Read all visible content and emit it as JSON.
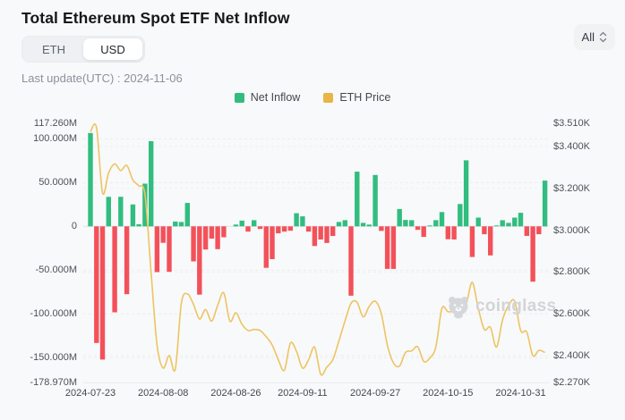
{
  "header": {
    "title": "Total Ethereum Spot ETF Net Inflow",
    "toggle": {
      "options": [
        "ETH",
        "USD"
      ],
      "selected": "USD"
    },
    "range_dropdown": {
      "value": "All"
    },
    "last_update": "Last update(UTC) : 2024-11-06"
  },
  "legend": [
    {
      "label": "Net Inflow",
      "color": "#31bd7f"
    },
    {
      "label": "ETH Price",
      "color": "#e9b544"
    }
  ],
  "watermark": {
    "text": "coinglass"
  },
  "chart_data": {
    "type": "bar+line",
    "title": "Total Ethereum Spot ETF Net Inflow",
    "x": [
      "2024-07-23",
      "2024-07-24",
      "2024-07-25",
      "2024-07-26",
      "2024-07-29",
      "2024-07-30",
      "2024-07-31",
      "2024-08-01",
      "2024-08-02",
      "2024-08-05",
      "2024-08-06",
      "2024-08-07",
      "2024-08-08",
      "2024-08-09",
      "2024-08-12",
      "2024-08-13",
      "2024-08-14",
      "2024-08-15",
      "2024-08-16",
      "2024-08-19",
      "2024-08-20",
      "2024-08-21",
      "2024-08-22",
      "2024-08-23",
      "2024-08-26",
      "2024-08-27",
      "2024-08-28",
      "2024-08-29",
      "2024-08-30",
      "2024-09-03",
      "2024-09-04",
      "2024-09-05",
      "2024-09-06",
      "2024-09-09",
      "2024-09-10",
      "2024-09-11",
      "2024-09-12",
      "2024-09-13",
      "2024-09-16",
      "2024-09-17",
      "2024-09-18",
      "2024-09-19",
      "2024-09-20",
      "2024-09-23",
      "2024-09-24",
      "2024-09-25",
      "2024-09-26",
      "2024-09-27",
      "2024-09-30",
      "2024-10-01",
      "2024-10-02",
      "2024-10-03",
      "2024-10-04",
      "2024-10-07",
      "2024-10-08",
      "2024-10-09",
      "2024-10-10",
      "2024-10-11",
      "2024-10-14",
      "2024-10-15",
      "2024-10-16",
      "2024-10-17",
      "2024-10-18",
      "2024-10-21",
      "2024-10-22",
      "2024-10-23",
      "2024-10-24",
      "2024-10-25",
      "2024-10-28",
      "2024-10-29",
      "2024-10-30",
      "2024-10-31",
      "2024-11-01",
      "2024-11-04",
      "2024-11-05",
      "2024-11-06"
    ],
    "series": [
      {
        "name": "Net Inflow",
        "type": "bar",
        "unit": "USD millions",
        "values": [
          106.6,
          -133.3,
          -152.3,
          33.7,
          -98.3,
          33.8,
          -77.5,
          25.0,
          2.5,
          48.8,
          97.3,
          -52.3,
          -18.8,
          -52.0,
          5.5,
          5.0,
          26.8,
          -40.0,
          -78.0,
          -26.5,
          -14.0,
          -26.0,
          -12.5,
          0.0,
          2.0,
          6.5,
          -6.0,
          7.0,
          -3.0,
          -47.4,
          -37.5,
          -8.0,
          -6.0,
          -5.0,
          15.0,
          11.4,
          -6.0,
          -22.5,
          -15.0,
          -19.0,
          -11.0,
          5.0,
          7.0,
          -79.3,
          62.5,
          4.0,
          2.0,
          58.7,
          -5.2,
          -48.6,
          -48.6,
          19.8,
          7.4,
          7.0,
          -4.0,
          -12.1,
          1.0,
          7.0,
          16.3,
          -14.7,
          -15.0,
          25.5,
          75.5,
          -35.0,
          10.0,
          -9.0,
          -33.2,
          1.0,
          7.0,
          4.0,
          10.0,
          15.5,
          -10.9,
          -63.2,
          -9.0,
          52.3
        ]
      },
      {
        "name": "ETH Price",
        "type": "line",
        "unit": "USD",
        "values": [
          3470,
          3490,
          3179,
          3274,
          3317,
          3285,
          3310,
          3240,
          3212,
          3170,
          2800,
          2450,
          2340,
          2400,
          2335,
          2650,
          2695,
          2645,
          2575,
          2620,
          2565,
          2640,
          2700,
          2565,
          2605,
          2550,
          2520,
          2525,
          2520,
          2490,
          2450,
          2380,
          2330,
          2460,
          2420,
          2340,
          2380,
          2440,
          2310,
          2345,
          2380,
          2470,
          2565,
          2650,
          2655,
          2585,
          2635,
          2660,
          2600,
          2450,
          2365,
          2350,
          2415,
          2422,
          2442,
          2372,
          2388,
          2442,
          2625,
          2610,
          2612,
          2606,
          2645,
          2750,
          2625,
          2525,
          2535,
          2440,
          2570,
          2640,
          2660,
          2520,
          2512,
          2400,
          2425,
          2415
        ]
      }
    ],
    "y_axis_left": {
      "labels": [
        "117.260M",
        "100.000M",
        "50.000M",
        "0",
        "-50.000M",
        "-100.000M",
        "-150.000M",
        "-178.970M"
      ],
      "values": [
        117.26,
        100,
        50,
        0,
        -50,
        -100,
        -150,
        -178.97
      ],
      "range": [
        -178.97,
        117.26
      ]
    },
    "y_axis_right": {
      "labels": [
        "$3.510K",
        "$3.400K",
        "$3.200K",
        "$3.000K",
        "$2.800K",
        "$2.600K",
        "$2.400K",
        "$2.270K"
      ],
      "values": [
        3510,
        3400,
        3200,
        3000,
        2800,
        2600,
        2400,
        2270
      ],
      "range": [
        2270,
        3510
      ]
    },
    "x_tick_labels": [
      "2024-07-23",
      "2024-08-08",
      "2024-08-26",
      "2024-09-11",
      "2024-09-27",
      "2024-10-15",
      "2024-10-31"
    ],
    "grid": true,
    "legend_position": "top-center",
    "colors": {
      "inflow_positive": "#31bd7f",
      "inflow_negative": "#f3515a",
      "price_line": "#edc464",
      "legend_price_swatch": "#e9b544"
    }
  }
}
